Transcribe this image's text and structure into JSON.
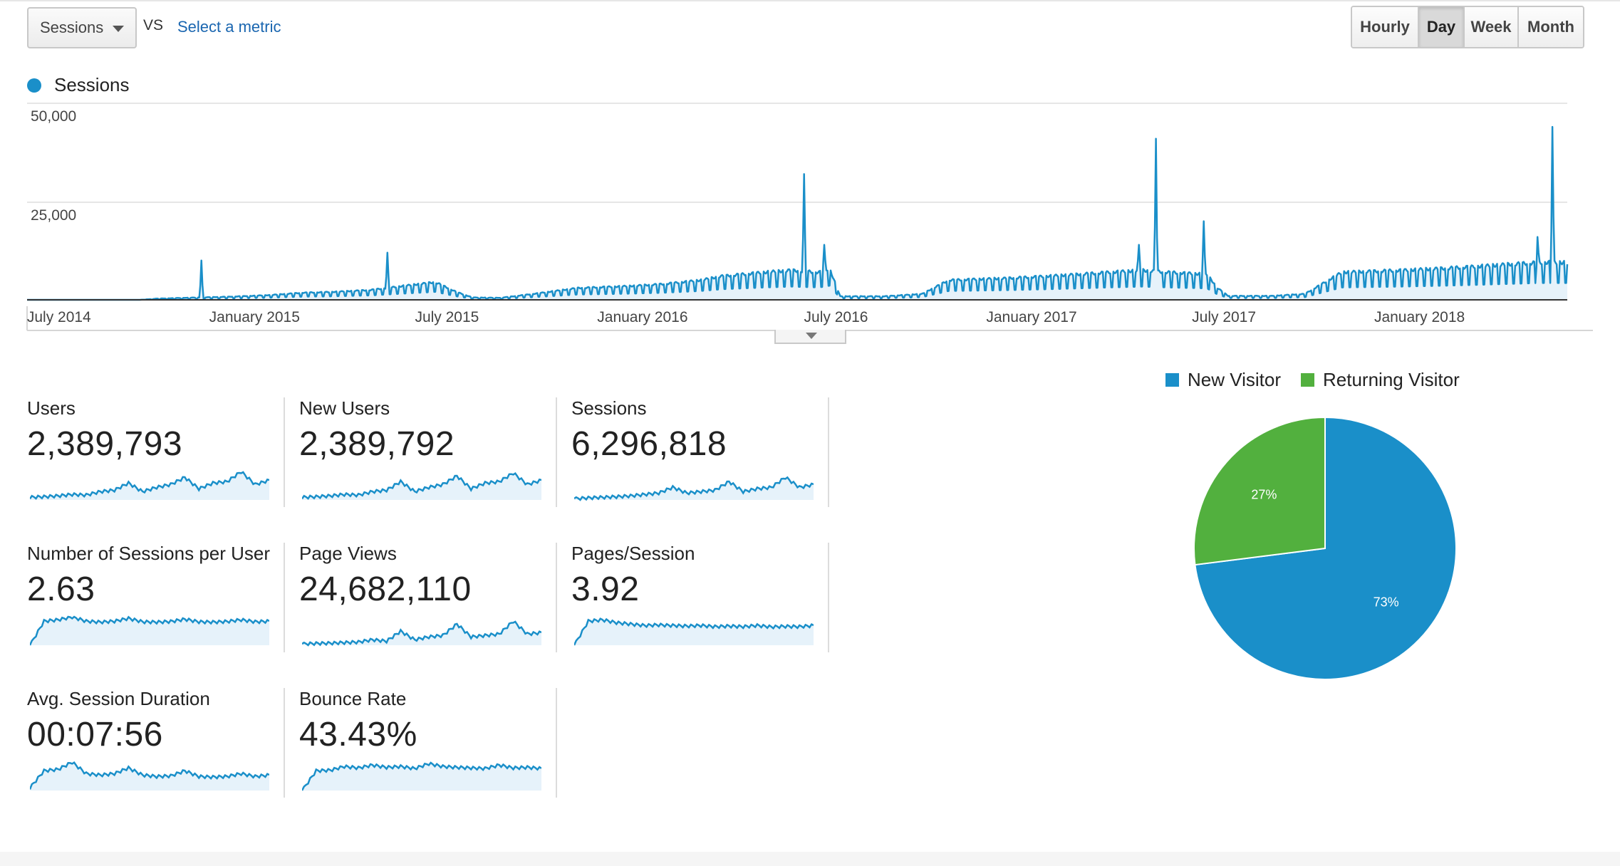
{
  "controls": {
    "metric_select": "Sessions",
    "vs": "VS",
    "select_metric": "Select a metric",
    "granularity": [
      {
        "label": "Hourly",
        "active": false
      },
      {
        "label": "Day",
        "active": true
      },
      {
        "label": "Week",
        "active": false
      },
      {
        "label": "Month",
        "active": false
      }
    ]
  },
  "colors": {
    "accent": "#1a8fc9",
    "accent_fill": "#e6f2fa",
    "green": "#52b03e",
    "link": "#1a66b0"
  },
  "icons": {
    "metric_dropdown": "caret-down-icon",
    "chart_toggle": "chevron-down-icon"
  },
  "chart_data": [
    {
      "type": "area",
      "legend": [
        "Sessions"
      ],
      "y_ticks": [
        "50,000",
        "25,000"
      ],
      "ylim": [
        0,
        50000
      ],
      "x_ticks": [
        "July 2014",
        "January 2015",
        "July 2015",
        "January 2016",
        "July 2016",
        "January 2017",
        "July 2017",
        "January 2018"
      ],
      "xlim": [
        "2014-06-01",
        "2018-05-20"
      ],
      "grid": true,
      "series": [
        {
          "name": "Sessions",
          "baseline_points": [
            [
              "2014-06-01",
              0
            ],
            [
              "2014-09-15",
              0
            ],
            [
              "2014-10-01",
              300
            ],
            [
              "2014-11-10",
              600
            ],
            [
              "2014-12-10",
              800
            ],
            [
              "2015-01-15",
              1200
            ],
            [
              "2015-02-15",
              1800
            ],
            [
              "2015-03-15",
              2000
            ],
            [
              "2015-04-20",
              2500
            ],
            [
              "2015-05-20",
              3500
            ],
            [
              "2015-06-20",
              4500
            ],
            [
              "2015-07-10",
              2000
            ],
            [
              "2015-07-25",
              600
            ],
            [
              "2015-08-20",
              500
            ],
            [
              "2015-09-20",
              1500
            ],
            [
              "2015-11-01",
              3000
            ],
            [
              "2015-12-20",
              3500
            ],
            [
              "2016-01-20",
              4000
            ],
            [
              "2016-02-25",
              5000
            ],
            [
              "2016-03-15",
              6000
            ],
            [
              "2016-04-25",
              7000
            ],
            [
              "2016-05-20",
              7500
            ],
            [
              "2016-06-15",
              7000
            ],
            [
              "2016-06-25",
              8000
            ],
            [
              "2016-07-05",
              900
            ],
            [
              "2016-08-15",
              900
            ],
            [
              "2016-09-20",
              1500
            ],
            [
              "2016-10-15",
              5000
            ],
            [
              "2016-12-10",
              5500
            ],
            [
              "2017-01-15",
              6000
            ],
            [
              "2017-02-15",
              6500
            ],
            [
              "2017-03-15",
              7000
            ],
            [
              "2017-04-15",
              7500
            ],
            [
              "2017-05-10",
              7000
            ],
            [
              "2017-06-15",
              6500
            ],
            [
              "2017-06-25",
              3000
            ],
            [
              "2017-07-05",
              1000
            ],
            [
              "2017-08-15",
              1000
            ],
            [
              "2017-09-15",
              1500
            ],
            [
              "2017-10-20",
              7000
            ],
            [
              "2017-12-15",
              7500
            ],
            [
              "2018-01-25",
              8000
            ],
            [
              "2018-02-25",
              8500
            ],
            [
              "2018-03-25",
              9000
            ],
            [
              "2018-04-25",
              9500
            ],
            [
              "2018-05-20",
              9500
            ]
          ],
          "spikes": [
            [
              "2014-11-12",
              10000
            ],
            [
              "2015-05-06",
              12000
            ],
            [
              "2016-06-01",
              32000
            ],
            [
              "2016-06-20",
              14000
            ],
            [
              "2017-04-28",
              41000
            ],
            [
              "2017-04-12",
              14000
            ],
            [
              "2017-06-12",
              20000
            ],
            [
              "2018-05-06",
              44000
            ],
            [
              "2018-04-22",
              16000
            ]
          ]
        }
      ]
    },
    {
      "type": "pie",
      "legend": [
        "New Visitor",
        "Returning Visitor"
      ],
      "series": [
        {
          "name": "New Visitor",
          "value": 73,
          "label": "73%",
          "color": "#1a8fc9"
        },
        {
          "name": "Returning Visitor",
          "value": 27,
          "label": "27%",
          "color": "#52b03e"
        }
      ]
    }
  ],
  "scorecards": [
    {
      "label": "Users",
      "value": "2,389,793",
      "trend": [
        0.1,
        0.12,
        0.15,
        0.2,
        0.18,
        0.3,
        0.35,
        0.6,
        0.3,
        0.45,
        0.55,
        0.8,
        0.4,
        0.6,
        0.65,
        1.0,
        0.55,
        0.7
      ]
    },
    {
      "label": "New Users",
      "value": "2,389,792",
      "trend": [
        0.1,
        0.12,
        0.15,
        0.2,
        0.18,
        0.3,
        0.35,
        0.65,
        0.3,
        0.45,
        0.55,
        0.85,
        0.4,
        0.6,
        0.65,
        0.95,
        0.55,
        0.7
      ]
    },
    {
      "label": "Sessions",
      "value": "6,296,818",
      "trend": [
        0.05,
        0.08,
        0.1,
        0.12,
        0.15,
        0.2,
        0.25,
        0.45,
        0.25,
        0.3,
        0.35,
        0.65,
        0.3,
        0.4,
        0.45,
        0.8,
        0.45,
        0.55
      ]
    },
    {
      "label": "Number of Sessions per User",
      "value": "2.63",
      "trend": [
        0.0,
        0.85,
        0.9,
        1.0,
        0.85,
        0.82,
        0.85,
        0.95,
        0.83,
        0.82,
        0.84,
        0.92,
        0.83,
        0.82,
        0.84,
        0.9,
        0.83,
        0.85
      ]
    },
    {
      "label": "Page Views",
      "value": "24,682,110",
      "trend": [
        0.05,
        0.07,
        0.08,
        0.1,
        0.12,
        0.2,
        0.15,
        0.5,
        0.2,
        0.3,
        0.35,
        0.75,
        0.3,
        0.35,
        0.4,
        0.85,
        0.4,
        0.45
      ]
    },
    {
      "label": "Pages/Session",
      "value": "3.92",
      "trend": [
        0.0,
        0.85,
        0.9,
        0.8,
        0.75,
        0.7,
        0.72,
        0.7,
        0.68,
        0.7,
        0.66,
        0.68,
        0.66,
        0.7,
        0.65,
        0.67,
        0.66,
        0.7
      ]
    },
    {
      "label": "Avg. Session Duration",
      "value": "00:07:56",
      "trend": [
        0.1,
        0.7,
        0.75,
        1.0,
        0.6,
        0.55,
        0.6,
        0.8,
        0.55,
        0.5,
        0.52,
        0.7,
        0.5,
        0.48,
        0.5,
        0.6,
        0.5,
        0.55
      ]
    },
    {
      "label": "Bounce Rate",
      "value": "43.43%",
      "trend": [
        0.0,
        0.7,
        0.72,
        0.85,
        0.8,
        0.9,
        0.82,
        0.85,
        0.78,
        0.95,
        0.85,
        0.82,
        0.8,
        0.78,
        0.9,
        0.8,
        0.82,
        0.78
      ]
    }
  ]
}
